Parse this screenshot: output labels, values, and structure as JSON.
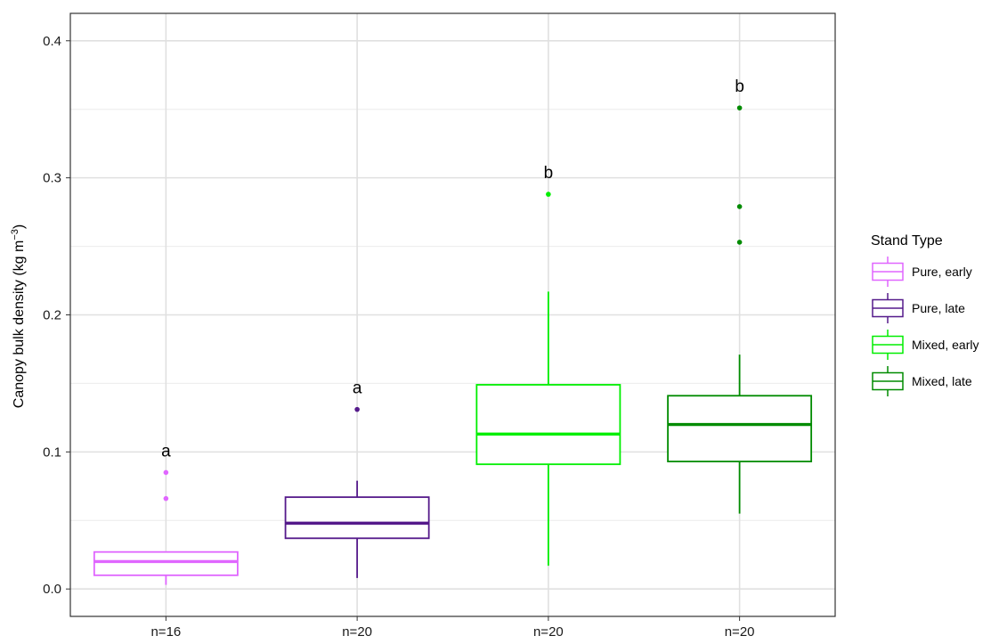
{
  "chart_data": {
    "type": "boxplot",
    "ylabel_main": "Canopy bulk density (kg m",
    "ylabel_sup": "−3",
    "ylabel_close": ")",
    "ylim": [
      -0.02,
      0.42
    ],
    "yticks": [
      "0.0",
      "0.1",
      "0.2",
      "0.3",
      "0.4"
    ],
    "grid": true,
    "legend": {
      "title": "Stand Type",
      "position": "right"
    },
    "categories": [
      "n=16",
      "n=20",
      "n=20",
      "n=20"
    ],
    "series": [
      {
        "name": "Pure, early",
        "color": "#e066ff",
        "whisker_low": 0.003,
        "q1": 0.01,
        "median": 0.02,
        "q3": 0.027,
        "whisker_high": 0.027,
        "outliers": [
          0.066,
          0.085
        ],
        "letter": "a"
      },
      {
        "name": "Pure, late",
        "color": "#551a8b",
        "whisker_low": 0.008,
        "q1": 0.037,
        "median": 0.048,
        "q3": 0.067,
        "whisker_high": 0.079,
        "outliers": [
          0.131
        ],
        "letter": "a"
      },
      {
        "name": "Mixed, early",
        "color": "#00ee00",
        "whisker_low": 0.017,
        "q1": 0.091,
        "median": 0.113,
        "q3": 0.149,
        "whisker_high": 0.217,
        "outliers": [
          0.288
        ],
        "letter": "b"
      },
      {
        "name": "Mixed, late",
        "color": "#008b00",
        "whisker_low": 0.055,
        "q1": 0.093,
        "median": 0.12,
        "q3": 0.141,
        "whisker_high": 0.171,
        "outliers": [
          0.253,
          0.279,
          0.351
        ],
        "letter": "b"
      }
    ]
  }
}
